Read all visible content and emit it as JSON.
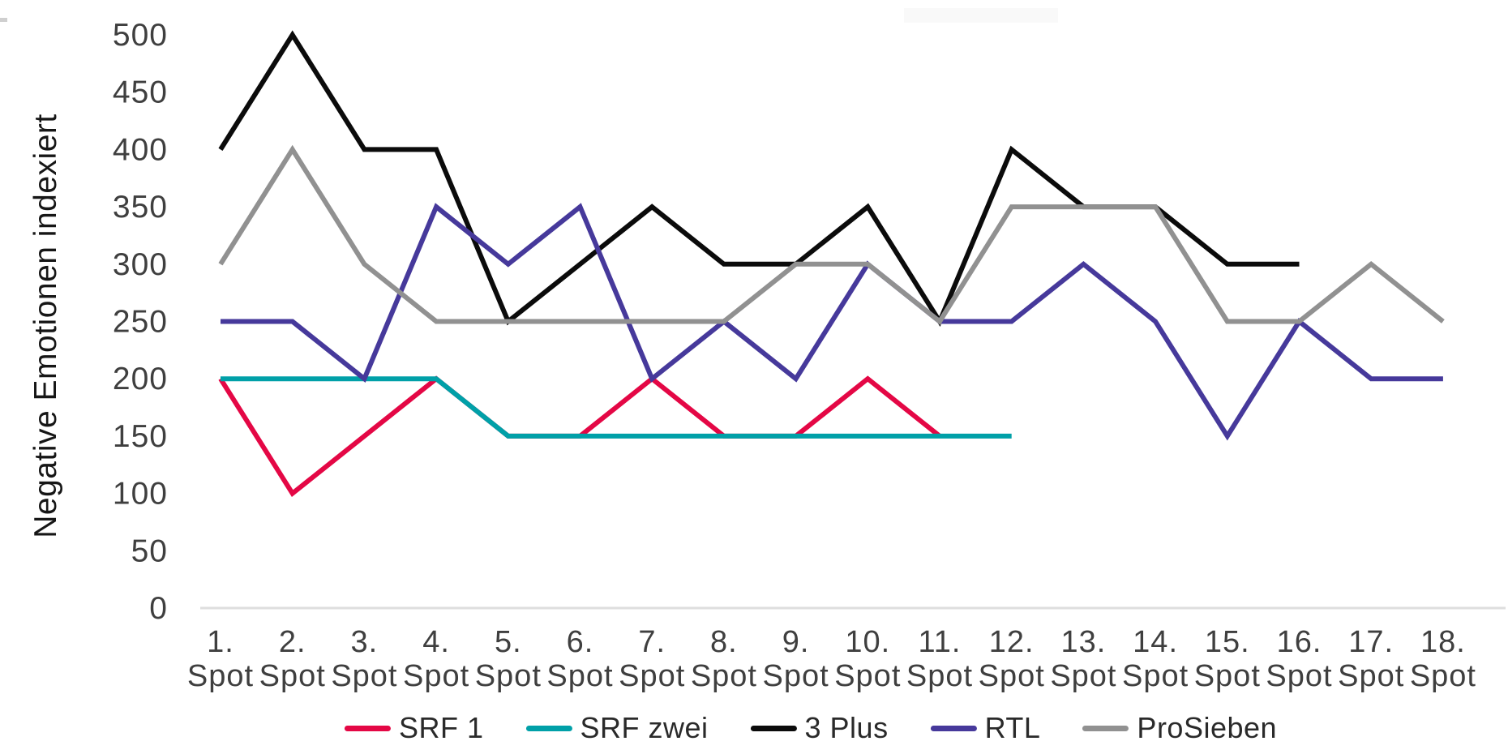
{
  "chart_data": {
    "type": "line",
    "title": "",
    "xlabel": "",
    "ylabel": "Negative Emotionen indexiert",
    "ylim": [
      0,
      500
    ],
    "ytick_values": [
      0,
      50,
      100,
      150,
      200,
      250,
      300,
      350,
      400,
      450,
      500
    ],
    "grid": "off",
    "legend_position": "bottom-center",
    "categories_line1": [
      "1.",
      "2.",
      "3.",
      "4.",
      "5.",
      "6.",
      "7.",
      "8.",
      "9.",
      "10.",
      "11.",
      "12.",
      "13.",
      "14.",
      "15.",
      "16.",
      "17.",
      "18."
    ],
    "categories_line2": "Spot",
    "series": [
      {
        "name": "SRF 1",
        "color": "#E40745",
        "values": [
          200,
          100,
          150,
          200,
          150,
          150,
          200,
          150,
          150,
          200,
          150
        ]
      },
      {
        "name": "SRF zwei",
        "color": "#00A0A8",
        "values": [
          200,
          200,
          200,
          200,
          150,
          150,
          150,
          150,
          150,
          150,
          150,
          150
        ]
      },
      {
        "name": "3 Plus",
        "color": "#0B0B0B",
        "values": [
          400,
          500,
          400,
          400,
          250,
          300,
          350,
          300,
          300,
          350,
          250,
          400,
          350,
          350,
          300,
          300
        ]
      },
      {
        "name": "RTL",
        "color": "#46399B",
        "values": [
          250,
          250,
          200,
          350,
          300,
          350,
          200,
          250,
          200,
          300,
          250,
          250,
          300,
          250,
          150,
          250,
          200,
          200
        ]
      },
      {
        "name": "ProSieben",
        "color": "#919191",
        "values": [
          300,
          400,
          300,
          250,
          250,
          250,
          250,
          250,
          300,
          300,
          250,
          350,
          350,
          350,
          250,
          250,
          300,
          250
        ]
      }
    ]
  },
  "colors": {
    "background": "#FFFFFF",
    "axis_line": "#DEDEDE",
    "tick_label": "#3F3F3F",
    "x_label": "#3F3F3F",
    "legend_text": "#2A2A2A",
    "y_title": "#161616"
  }
}
